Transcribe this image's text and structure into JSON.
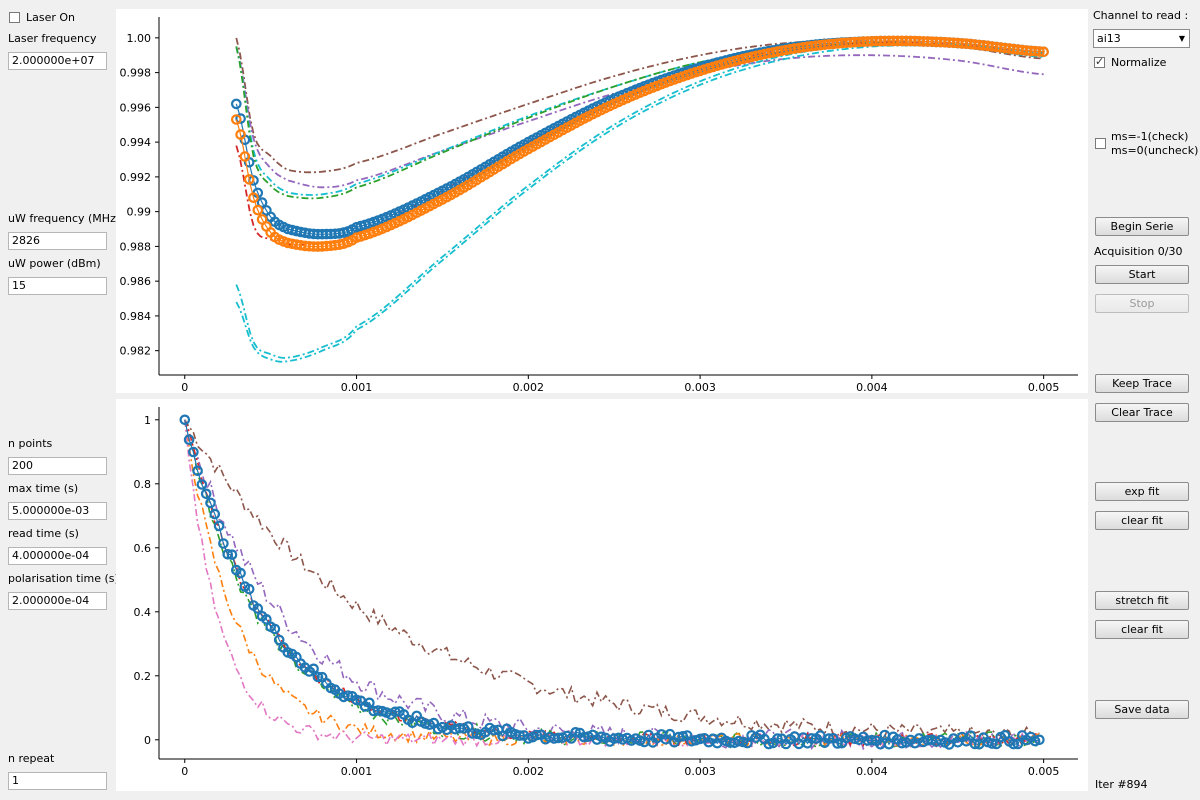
{
  "left": {
    "laser_on": {
      "label": "Laser On",
      "checked": false
    },
    "laser_freq": {
      "label": "Laser frequency",
      "value": "2.000000e+07"
    },
    "uw_freq": {
      "label": "uW frequency (MHz)",
      "value": "2826"
    },
    "uw_power": {
      "label": "uW power (dBm)",
      "value": "15"
    },
    "n_points": {
      "label": "n points",
      "value": "200"
    },
    "max_time": {
      "label": "max time (s)",
      "value": "5.000000e-03"
    },
    "read_time": {
      "label": "read time (s)",
      "value": "4.000000e-04"
    },
    "pol_time": {
      "label": "polarisation time (s)",
      "value": "2.000000e-04"
    },
    "n_repeat": {
      "label": "n repeat",
      "value": "1"
    }
  },
  "right": {
    "channel_label": "Channel to read :",
    "channel_value": "ai13",
    "normalize": {
      "label": "Normalize",
      "checked": true
    },
    "ms_toggle": {
      "label_1": "ms=-1(check)",
      "label_2": "ms=0(uncheck)",
      "checked": false
    },
    "begin_serie": "Begin Serie",
    "acquisition": "Acquisition 0/30",
    "start": "Start",
    "stop": "Stop",
    "keep_trace": "Keep Trace",
    "clear_trace": "Clear Trace",
    "exp_fit": "exp fit",
    "clear_fit_1": "clear fit",
    "stretch_fit": "stretch fit",
    "clear_fit_2": "clear fit",
    "save_data": "Save data",
    "iter": "Iter #894"
  },
  "chart_data": [
    {
      "type": "line",
      "xlim": [
        -0.00015,
        0.0052
      ],
      "ylim": [
        0.9806,
        1.0012
      ],
      "xticks": [
        "0",
        "0.001",
        "0.002",
        "0.003",
        "0.004",
        "0.005"
      ],
      "yticks": [
        "0.982",
        "0.984",
        "0.986",
        "0.988",
        "0.99",
        "0.992",
        "0.994",
        "0.996",
        "0.998",
        "1.00"
      ],
      "series": [
        {
          "color": "#8c564b",
          "style": "dashdot",
          "x": [
            0.0003,
            0.0004,
            0.0005,
            0.0006,
            0.0008,
            0.001,
            0.0015,
            0.002,
            0.0025,
            0.003,
            0.0035,
            0.004,
            0.0045,
            0.005
          ],
          "y": [
            1.0,
            0.9945,
            0.9932,
            0.9924,
            0.9923,
            0.9928,
            0.9945,
            0.9962,
            0.9978,
            0.999,
            0.9997,
            0.9998,
            0.9995,
            0.9988
          ]
        },
        {
          "color": "#9467bd",
          "style": "dashdot",
          "x": [
            0.0003,
            0.0004,
            0.0005,
            0.0006,
            0.0008,
            0.001,
            0.0015,
            0.002,
            0.0025,
            0.003,
            0.0035,
            0.004,
            0.0045,
            0.005
          ],
          "y": [
            0.9995,
            0.9942,
            0.9925,
            0.9918,
            0.9914,
            0.9918,
            0.9935,
            0.9952,
            0.9968,
            0.998,
            0.9988,
            0.999,
            0.9987,
            0.9979
          ]
        },
        {
          "color": "#17becf",
          "style": "dashdot",
          "x": [
            0.0003,
            0.0004,
            0.0005,
            0.0006,
            0.0008,
            0.001,
            0.0015,
            0.002,
            0.0025,
            0.003,
            0.0035,
            0.004,
            0.0045,
            0.005
          ],
          "y": [
            0.9995,
            0.9935,
            0.9918,
            0.9911,
            0.991,
            0.9916,
            0.9935,
            0.9955,
            0.9972,
            0.9986,
            0.9994,
            0.9997,
            0.9995,
            0.9989
          ]
        },
        {
          "color": "#2ca02c",
          "style": "dashdot",
          "x": [
            0.0003,
            0.0004,
            0.0005,
            0.0006,
            0.0008,
            0.001,
            0.0015,
            0.002,
            0.0025,
            0.003,
            0.0035,
            0.004,
            0.0045,
            0.005
          ],
          "y": [
            0.9995,
            0.9932,
            0.9915,
            0.9909,
            0.9908,
            0.9914,
            0.9934,
            0.9954,
            0.9972,
            0.9986,
            0.9994,
            0.9997,
            0.9995,
            0.999
          ]
        },
        {
          "color": "#d62728",
          "style": "dashdot",
          "x": [
            0.0003,
            0.0004,
            0.0005,
            0.0006,
            0.0008,
            0.001,
            0.0015,
            0.002,
            0.0025,
            0.003,
            0.0035,
            0.004,
            0.0045,
            0.005
          ],
          "y": [
            0.9938,
            0.9892,
            0.9884,
            0.9881,
            0.9882,
            0.9888,
            0.9912,
            0.994,
            0.9965,
            0.9983,
            0.9993,
            0.9997,
            0.9996,
            0.9991
          ]
        },
        {
          "color": "#17becf",
          "style": "dashdot",
          "x": [
            0.0003,
            0.0004,
            0.0005,
            0.0006,
            0.0008,
            0.001,
            0.0015,
            0.002,
            0.0025,
            0.003,
            0.0035,
            0.004,
            0.0045,
            0.005
          ],
          "y": [
            0.9858,
            0.9825,
            0.9818,
            0.9816,
            0.9822,
            0.9834,
            0.9874,
            0.9915,
            0.995,
            0.9975,
            0.999,
            0.9996,
            0.9996,
            0.9992
          ]
        },
        {
          "color": "#17becf",
          "style": "dashdot",
          "x": [
            0.0003,
            0.0004,
            0.0005,
            0.0006,
            0.0008,
            0.001,
            0.0015,
            0.002,
            0.0025,
            0.003,
            0.0035,
            0.004,
            0.0045,
            0.005
          ],
          "y": [
            0.9848,
            0.9822,
            0.9815,
            0.9814,
            0.982,
            0.9832,
            0.9872,
            0.9913,
            0.9948,
            0.9973,
            0.9988,
            0.9995,
            0.9995,
            0.9991
          ]
        },
        {
          "color": "#1f77b4",
          "style": "markers",
          "x": [
            0.0003,
            0.0004,
            0.0005,
            0.0006,
            0.0008,
            0.001,
            0.0015,
            0.002,
            0.0025,
            0.003,
            0.0035,
            0.004,
            0.0045,
            0.005
          ],
          "y": [
            0.9962,
            0.9918,
            0.9897,
            0.989,
            0.9887,
            0.9891,
            0.9912,
            0.994,
            0.9965,
            0.9983,
            0.9994,
            0.9998,
            0.9997,
            0.9992
          ]
        },
        {
          "color": "#ff7f0e",
          "style": "markers",
          "x": [
            0.0003,
            0.0004,
            0.0005,
            0.0006,
            0.0008,
            0.001,
            0.0015,
            0.002,
            0.0025,
            0.003,
            0.0035,
            0.004,
            0.0045,
            0.005
          ],
          "y": [
            0.9953,
            0.9908,
            0.9888,
            0.9882,
            0.988,
            0.9885,
            0.9907,
            0.9936,
            0.9962,
            0.9981,
            0.9993,
            0.9998,
            0.9997,
            0.9992
          ]
        }
      ]
    },
    {
      "type": "line",
      "xlim": [
        -0.00015,
        0.0052
      ],
      "ylim": [
        -0.06,
        1.04
      ],
      "xticks": [
        "0",
        "0.001",
        "0.002",
        "0.003",
        "0.004",
        "0.005"
      ],
      "yticks": [
        "0",
        "0.2",
        "0.4",
        "0.6",
        "0.8",
        "1"
      ],
      "series": [
        {
          "color": "#8c564b",
          "style": "dashdot",
          "tau": 0.00115,
          "noise": 0.025
        },
        {
          "color": "#9467bd",
          "style": "dashdot",
          "tau": 0.0006,
          "noise": 0.03
        },
        {
          "color": "#2ca02c",
          "style": "dashdot",
          "tau": 0.00045,
          "noise": 0.025
        },
        {
          "color": "#d62728",
          "style": "dashdot",
          "tau": 0.00048,
          "noise": 0.02
        },
        {
          "color": "#ff7f0e",
          "style": "dashdot",
          "tau": 0.0003,
          "noise": 0.02
        },
        {
          "color": "#e377c2",
          "style": "dashdot",
          "tau": 0.0002,
          "noise": 0.02
        },
        {
          "color": "#1f77b4",
          "style": "markers",
          "tau": 0.00048,
          "noise": 0.015
        }
      ]
    }
  ]
}
